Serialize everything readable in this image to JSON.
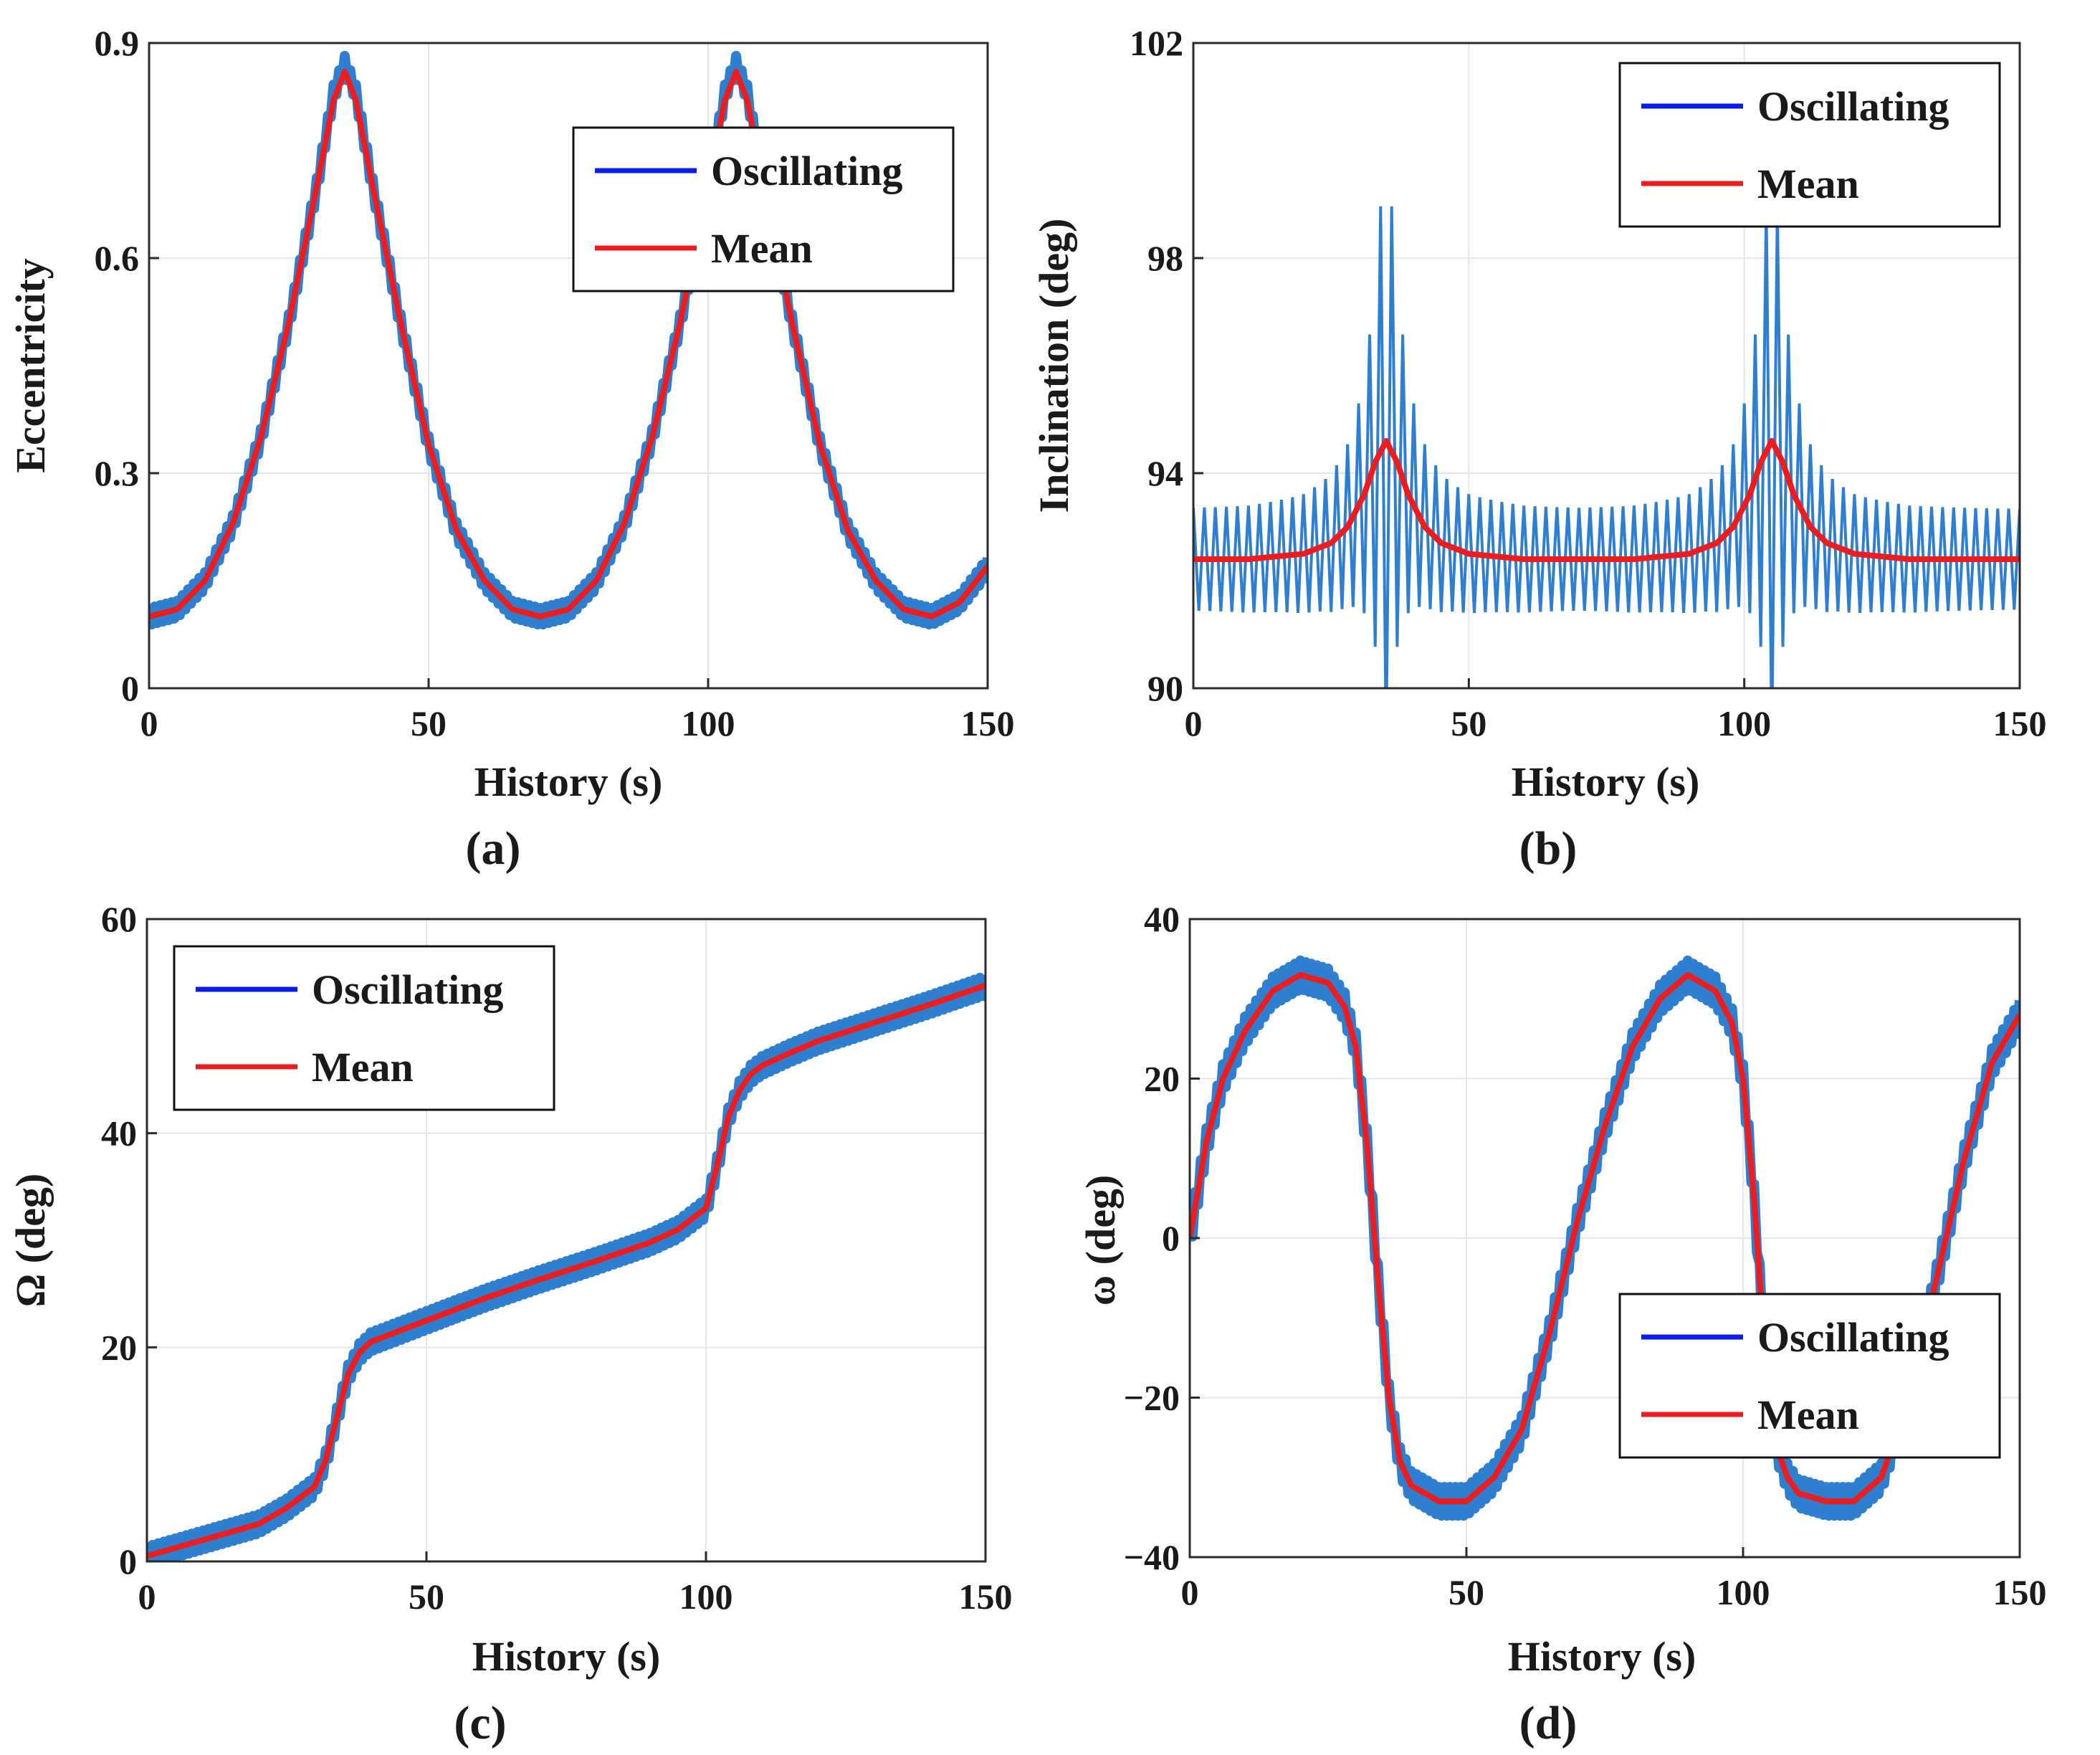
{
  "figure": {
    "colors": {
      "oscillating": "#2f7fd0",
      "mean": "#ee1c1c",
      "legend_oscillating": "#0a1cf0",
      "legend_mean": "#ee1c1c",
      "grid": "#e6e6e6",
      "axis": "#2a2a2a"
    }
  },
  "chart_data": [
    {
      "id": "a",
      "type": "line",
      "caption": "(a)",
      "xlabel": "History (s)",
      "ylabel": "Eccentricity",
      "xlim": [
        0,
        150
      ],
      "ylim": [
        0,
        0.9
      ],
      "xticks": [
        0,
        50,
        100,
        150
      ],
      "xtick_labels": [
        "0",
        "50",
        "100",
        "150"
      ],
      "yticks": [
        0,
        0.3,
        0.6,
        0.9
      ],
      "ytick_labels": [
        "0",
        "0.3",
        "0.6",
        "0.9"
      ],
      "grid": true,
      "legend": {
        "position": "top-right",
        "entries": [
          "Oscillating",
          "Mean"
        ]
      },
      "series": [
        {
          "name": "Mean",
          "x": [
            0,
            5,
            10,
            15,
            20,
            25,
            30,
            33,
            35,
            37,
            40,
            45,
            50,
            55,
            60,
            65,
            70,
            75,
            80,
            85,
            90,
            95,
            100,
            103,
            105,
            107,
            110,
            115,
            120,
            125,
            130,
            135,
            140,
            145,
            150
          ],
          "values": [
            0.1,
            0.11,
            0.15,
            0.23,
            0.35,
            0.51,
            0.7,
            0.82,
            0.86,
            0.82,
            0.7,
            0.51,
            0.34,
            0.22,
            0.15,
            0.11,
            0.1,
            0.11,
            0.15,
            0.23,
            0.35,
            0.51,
            0.7,
            0.82,
            0.86,
            0.82,
            0.7,
            0.51,
            0.34,
            0.22,
            0.15,
            0.11,
            0.1,
            0.12,
            0.17
          ]
        },
        {
          "name": "Oscillating",
          "x": [
            0,
            5,
            10,
            15,
            20,
            25,
            30,
            33,
            35,
            37,
            40,
            45,
            50,
            55,
            60,
            65,
            70,
            75,
            80,
            85,
            90,
            95,
            100,
            103,
            105,
            107,
            110,
            115,
            120,
            125,
            130,
            135,
            140,
            145,
            150
          ],
          "values": [
            0.1,
            0.11,
            0.15,
            0.23,
            0.35,
            0.51,
            0.7,
            0.83,
            0.87,
            0.83,
            0.7,
            0.51,
            0.34,
            0.22,
            0.15,
            0.11,
            0.1,
            0.11,
            0.15,
            0.23,
            0.35,
            0.51,
            0.7,
            0.83,
            0.87,
            0.83,
            0.7,
            0.51,
            0.34,
            0.22,
            0.15,
            0.11,
            0.1,
            0.12,
            0.17
          ],
          "band": 0.012
        }
      ]
    },
    {
      "id": "b",
      "type": "line",
      "caption": "(b)",
      "xlabel": "History (s)",
      "ylabel": "Inclination (deg)",
      "xlim": [
        0,
        150
      ],
      "ylim": [
        90,
        102
      ],
      "xticks": [
        0,
        50,
        100,
        150
      ],
      "xtick_labels": [
        "0",
        "50",
        "100",
        "150"
      ],
      "yticks": [
        90,
        94,
        98,
        102
      ],
      "ytick_labels": [
        "90",
        "94",
        "98",
        "102"
      ],
      "grid": true,
      "legend": {
        "position": "top-right",
        "entries": [
          "Oscillating",
          "Mean"
        ]
      },
      "series": [
        {
          "name": "Mean",
          "x": [
            0,
            10,
            20,
            25,
            28,
            31,
            33,
            35,
            37,
            39,
            42,
            45,
            50,
            60,
            70,
            80,
            90,
            95,
            98,
            101,
            103,
            105,
            107,
            109,
            112,
            115,
            120,
            130,
            140,
            150
          ],
          "values": [
            92.4,
            92.4,
            92.5,
            92.7,
            93.0,
            93.6,
            94.2,
            94.6,
            94.2,
            93.6,
            93.0,
            92.7,
            92.5,
            92.4,
            92.4,
            92.4,
            92.5,
            92.7,
            93.0,
            93.6,
            94.2,
            94.6,
            94.2,
            93.6,
            93.0,
            92.7,
            92.5,
            92.4,
            92.4,
            92.4
          ]
        },
        {
          "name": "Oscillating",
          "center": "Mean",
          "period": 2.0,
          "base_half_amplitude": 0.9,
          "peak_half_amplitude": 5.6,
          "peaks_at": [
            35,
            105
          ],
          "observed_max": 100.3,
          "observed_min": 90.4
        }
      ]
    },
    {
      "id": "c",
      "type": "line",
      "caption": "(c)",
      "xlabel": "History (s)",
      "ylabel": "Ω (deg)",
      "xlim": [
        0,
        150
      ],
      "ylim": [
        0,
        60
      ],
      "xticks": [
        0,
        50,
        100,
        150
      ],
      "xtick_labels": [
        "0",
        "50",
        "100",
        "150"
      ],
      "yticks": [
        0,
        20,
        40,
        60
      ],
      "ytick_labels": [
        "0",
        "20",
        "40",
        "60"
      ],
      "grid": true,
      "legend": {
        "position": "top-left",
        "entries": [
          "Oscillating",
          "Mean"
        ]
      },
      "series": [
        {
          "name": "Mean",
          "x": [
            0,
            10,
            20,
            25,
            30,
            32,
            34,
            36,
            38,
            40,
            45,
            50,
            60,
            70,
            80,
            90,
            95,
            100,
            102,
            104,
            106,
            108,
            110,
            115,
            120,
            130,
            140,
            150
          ],
          "values": [
            0.5,
            2.0,
            3.5,
            5.0,
            7.0,
            9.5,
            13.5,
            17.5,
            19.5,
            20.5,
            21.5,
            22.5,
            24.5,
            26.3,
            28.0,
            29.8,
            31.0,
            33.0,
            37.0,
            41.5,
            44.0,
            45.5,
            46.3,
            47.5,
            48.6,
            50.3,
            52.0,
            53.8
          ]
        },
        {
          "name": "Oscillating",
          "center": "Mean",
          "band": 0.9
        }
      ]
    },
    {
      "id": "d",
      "type": "line",
      "caption": "(d)",
      "xlabel": "History (s)",
      "ylabel": "ω (deg)",
      "xlim": [
        0,
        150
      ],
      "ylim": [
        -40,
        40
      ],
      "xticks": [
        0,
        50,
        100,
        150
      ],
      "xtick_labels": [
        "0",
        "50",
        "100",
        "150"
      ],
      "yticks": [
        -40,
        -20,
        0,
        20,
        40
      ],
      "ytick_labels": [
        "−40",
        "−20",
        "0",
        "20",
        "40"
      ],
      "grid": true,
      "legend": {
        "position": "bottom-right",
        "entries": [
          "Oscillating",
          "Mean"
        ]
      },
      "series": [
        {
          "name": "Mean",
          "x": [
            0,
            3,
            6,
            10,
            15,
            20,
            25,
            28,
            30,
            32,
            34,
            36,
            38,
            40,
            45,
            50,
            55,
            60,
            65,
            70,
            75,
            80,
            85,
            90,
            95,
            98,
            100,
            102,
            104,
            106,
            108,
            110,
            115,
            120,
            125,
            130,
            135,
            140,
            145,
            150
          ],
          "values": [
            0,
            12,
            20,
            26,
            31,
            33,
            32,
            29,
            24,
            12,
            -5,
            -20,
            -28,
            -31,
            -33,
            -33,
            -30,
            -24,
            -12,
            2,
            14,
            24,
            30,
            33,
            31,
            27,
            20,
            5,
            -15,
            -26,
            -30,
            -32,
            -33,
            -33,
            -30,
            -20,
            -5,
            10,
            22,
            28
          ]
        },
        {
          "name": "Oscillating",
          "center": "Mean",
          "band": 1.8
        }
      ]
    }
  ]
}
